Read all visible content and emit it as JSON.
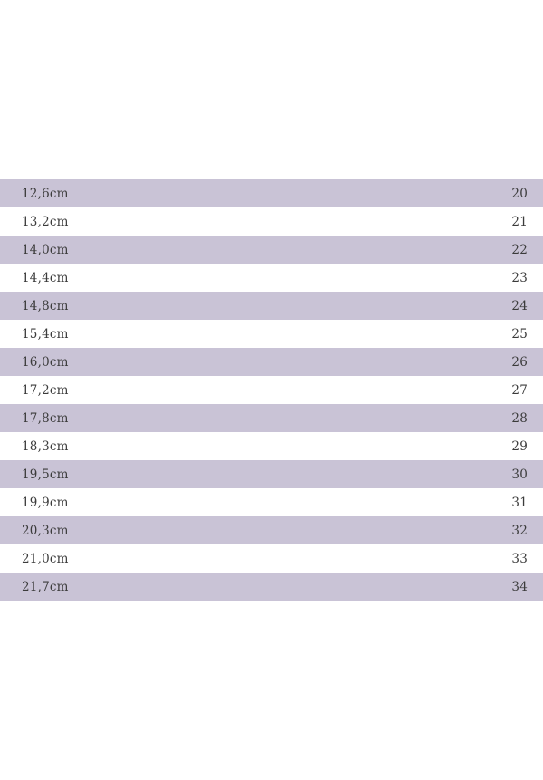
{
  "colors": {
    "stripe": "#c9c3d6",
    "row_text": "#3b3b3b",
    "background": "#ffffff"
  },
  "table": {
    "rows": [
      {
        "foot_length": "12,6cm",
        "size": "20"
      },
      {
        "foot_length": "13,2cm",
        "size": "21"
      },
      {
        "foot_length": "14,0cm",
        "size": "22"
      },
      {
        "foot_length": "14,4cm",
        "size": "23"
      },
      {
        "foot_length": "14,8cm",
        "size": "24"
      },
      {
        "foot_length": "15,4cm",
        "size": "25"
      },
      {
        "foot_length": "16,0cm",
        "size": "26"
      },
      {
        "foot_length": "17,2cm",
        "size": "27"
      },
      {
        "foot_length": "17,8cm",
        "size": "28"
      },
      {
        "foot_length": "18,3cm",
        "size": "29"
      },
      {
        "foot_length": "19,5cm",
        "size": "30"
      },
      {
        "foot_length": "19,9cm",
        "size": "31"
      },
      {
        "foot_length": "20,3cm",
        "size": "32"
      },
      {
        "foot_length": "21,0cm",
        "size": "33"
      },
      {
        "foot_length": "21,7cm",
        "size": "34"
      }
    ]
  }
}
